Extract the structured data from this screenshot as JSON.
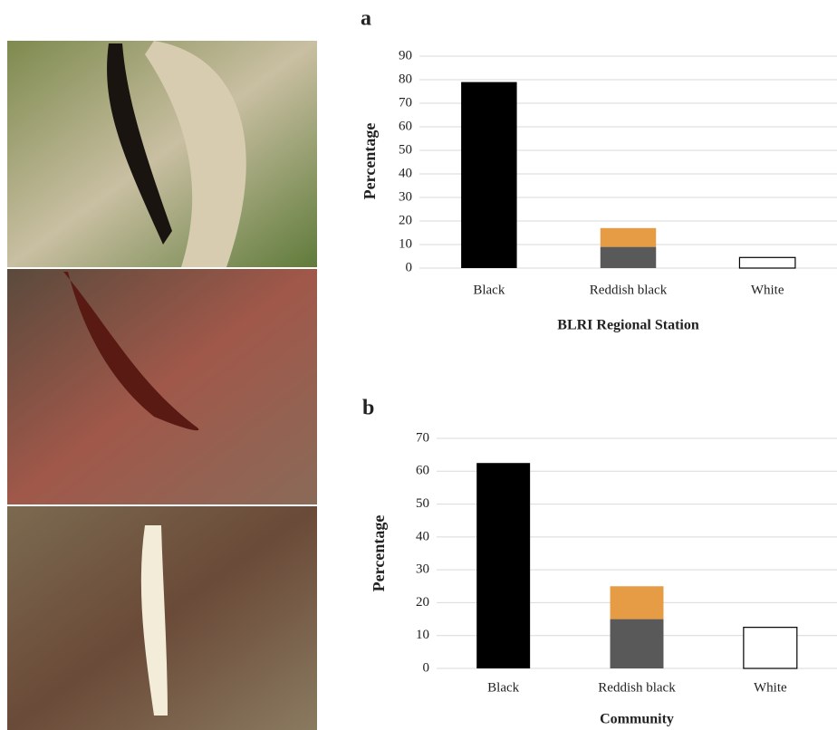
{
  "chart_data": [
    {
      "type": "stacked_bar",
      "panel_label": "a",
      "ylabel": "Percentage",
      "xlabel": "BLRI Regional Station",
      "categories": [
        "Black",
        "Reddish black",
        "White"
      ],
      "segments": [
        {
          "values": [
            79,
            9,
            4.5
          ],
          "colors": [
            "#000000",
            "#595959",
            "#ffffff"
          ]
        },
        {
          "values": [
            null,
            8,
            null
          ],
          "colors": [
            null,
            "#e59c45",
            null
          ]
        }
      ],
      "ylim": [
        0,
        90
      ],
      "yticks": [
        0,
        10,
        20,
        30,
        40,
        50,
        60,
        70,
        80,
        90
      ],
      "grid": true
    },
    {
      "type": "stacked_bar",
      "panel_label": "b",
      "ylabel": "Percentage",
      "xlabel": "Community",
      "categories": [
        "Black",
        "Reddish black",
        "White"
      ],
      "segments": [
        {
          "values": [
            62.5,
            15,
            12.5
          ],
          "colors": [
            "#000000",
            "#595959",
            "#ffffff"
          ]
        },
        {
          "values": [
            null,
            10,
            null
          ],
          "colors": [
            null,
            "#e59c45",
            null
          ]
        }
      ],
      "ylim": [
        0,
        70
      ],
      "yticks": [
        0,
        10,
        20,
        30,
        40,
        50,
        60,
        70
      ],
      "grid": true
    }
  ]
}
